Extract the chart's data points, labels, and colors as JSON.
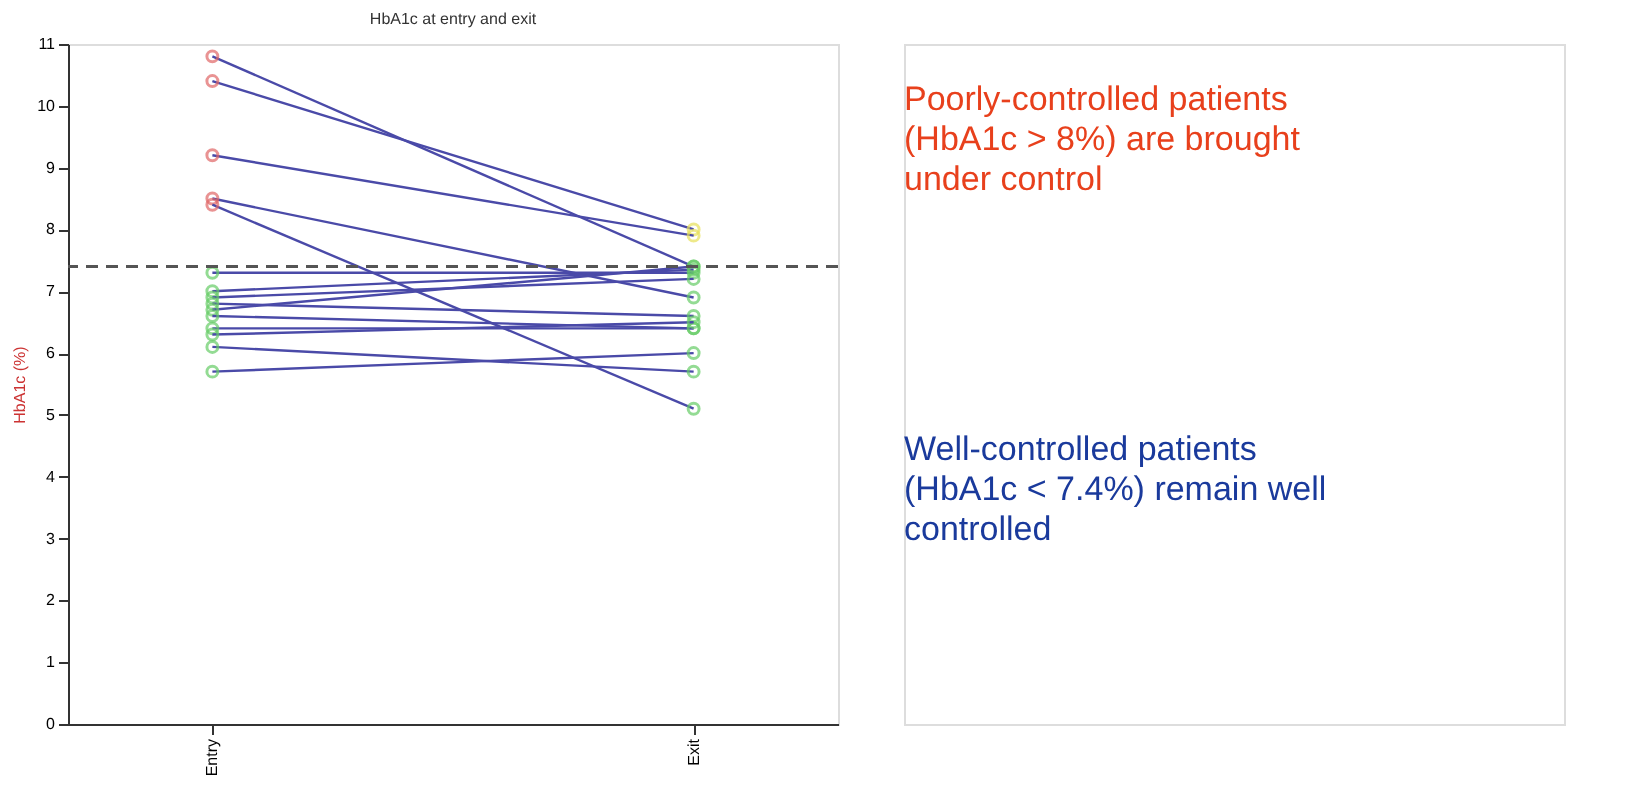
{
  "chart_data": {
    "type": "line",
    "title": "HbA1c at entry and exit",
    "ylabel": "HbA1c (%)",
    "categories": [
      "Entry",
      "Exit"
    ],
    "series": [
      {
        "color": "#4a4aa8",
        "colors": [
          "#e06666",
          "#66cc66"
        ],
        "values": [
          10.8,
          7.4
        ]
      },
      {
        "color": "#4a4aa8",
        "colors": [
          "#e06666",
          "#e8e05a"
        ],
        "values": [
          10.4,
          8.0
        ]
      },
      {
        "color": "#4a4aa8",
        "colors": [
          "#e06666",
          "#e8e05a"
        ],
        "values": [
          9.2,
          7.9
        ]
      },
      {
        "color": "#4a4aa8",
        "colors": [
          "#e06666",
          "#66cc66"
        ],
        "values": [
          8.5,
          6.9
        ]
      },
      {
        "color": "#4a4aa8",
        "colors": [
          "#e06666",
          "#66cc66"
        ],
        "values": [
          8.4,
          5.1
        ]
      },
      {
        "color": "#4a4aa8",
        "colors": [
          "#66cc66",
          "#66cc66"
        ],
        "values": [
          7.3,
          7.3
        ]
      },
      {
        "color": "#4a4aa8",
        "colors": [
          "#66cc66",
          "#66cc66"
        ],
        "values": [
          7.0,
          7.35
        ]
      },
      {
        "color": "#4a4aa8",
        "colors": [
          "#66cc66",
          "#66cc66"
        ],
        "values": [
          6.9,
          7.2
        ]
      },
      {
        "color": "#4a4aa8",
        "colors": [
          "#66cc66",
          "#66cc66"
        ],
        "values": [
          6.8,
          6.6
        ]
      },
      {
        "color": "#4a4aa8",
        "colors": [
          "#66cc66",
          "#66cc66"
        ],
        "values": [
          6.7,
          7.4
        ]
      },
      {
        "color": "#4a4aa8",
        "colors": [
          "#66cc66",
          "#66cc66"
        ],
        "values": [
          6.6,
          6.4
        ]
      },
      {
        "color": "#4a4aa8",
        "colors": [
          "#66cc66",
          "#66cc66"
        ],
        "values": [
          6.4,
          6.4
        ]
      },
      {
        "color": "#4a4aa8",
        "colors": [
          "#66cc66",
          "#66cc66"
        ],
        "values": [
          6.3,
          6.5
        ]
      },
      {
        "color": "#4a4aa8",
        "colors": [
          "#66cc66",
          "#66cc66"
        ],
        "values": [
          6.1,
          5.7
        ]
      },
      {
        "color": "#4a4aa8",
        "colors": [
          "#66cc66",
          "#66cc66"
        ],
        "values": [
          5.7,
          6.0
        ]
      }
    ],
    "ylim": [
      0,
      11
    ],
    "yticks": [
      0,
      1,
      2,
      3,
      4,
      5,
      6,
      7,
      8,
      9,
      10,
      11
    ],
    "ref_lines": [
      {
        "axis": "y",
        "value": 7.4,
        "color": "#555555",
        "line_style": "dashed"
      }
    ],
    "marker": "circle",
    "line_style": "solid",
    "grid": false,
    "annotations": [
      "Poorly-controlled patients (HbA1c > 8%) are brought under control",
      "Well-controlled patients (HbA1c < 7.4%) remain well controlled"
    ]
  }
}
